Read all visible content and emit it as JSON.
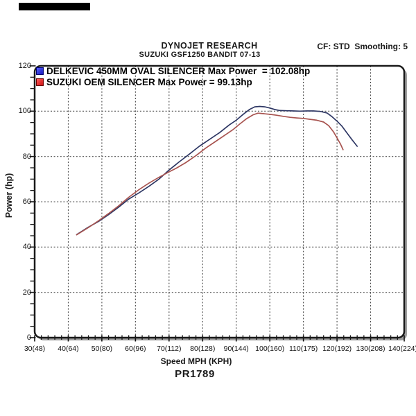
{
  "header": {
    "title": "DYNOJET RESEARCH",
    "subtitle": "SUZUKI GSF1250 BANDIT 07-13",
    "cf_smoothing": "CF: STD  Smoothing: 5"
  },
  "footer": {
    "xlabel": "Speed MPH (KPH)",
    "run_id": "PR1789"
  },
  "legend": [
    {
      "label": "DELKEVIC 450MM OVAL SILENCER Max Power  = 102.08hp",
      "swatch_fill_light": "#5560ff",
      "swatch_fill_dark": "#1717bb",
      "swatch_border": "#000070"
    },
    {
      "label": "SUZUKI OEM SILENCER Max Power = 99.13hp",
      "swatch_fill_light": "#ff5a5a",
      "swatch_fill_dark": "#cc1313",
      "swatch_border": "#6a0000"
    }
  ],
  "colors": {
    "delkevic_curve": "#2e3764",
    "oem_curve": "#a85450",
    "gridline": "#4a4a4a",
    "frame": "#1a1a1a",
    "frame_shadow": "#9e9e9e",
    "tick": "#111111"
  },
  "chart_data": {
    "type": "line",
    "title": "DYNOJET RESEARCH - SUZUKI GSF1250 BANDIT 07-13",
    "xlabel": "Speed MPH (KPH)",
    "ylabel": "Power (hp)",
    "xlim": [
      30,
      140
    ],
    "ylim": [
      0,
      120
    ],
    "grid": "dashed-major",
    "legend_position": "top-left-inside",
    "x_minor_step": 2,
    "y_minor_step": 5,
    "y_ticks": [
      0,
      20,
      40,
      60,
      80,
      100,
      120
    ],
    "x_ticks": [
      {
        "value": 30,
        "label": "30(48)"
      },
      {
        "value": 40,
        "label": "40(64)"
      },
      {
        "value": 50,
        "label": "50(80)"
      },
      {
        "value": 60,
        "label": "60(96)"
      },
      {
        "value": 70,
        "label": "70(112)"
      },
      {
        "value": 80,
        "label": "80(128)"
      },
      {
        "value": 90,
        "label": "90(144)"
      },
      {
        "value": 100,
        "label": "100(160)"
      },
      {
        "value": 110,
        "label": "110(175)"
      },
      {
        "value": 120,
        "label": "120(192)"
      },
      {
        "value": 130,
        "label": "130(208)"
      },
      {
        "value": 140,
        "label": "140(224)"
      }
    ],
    "series": [
      {
        "name": "DELKEVIC 450MM OVAL SILENCER",
        "max_power_hp": 102.08,
        "color": "#2e3764",
        "points": [
          [
            42.5,
            45.5
          ],
          [
            46,
            48.8
          ],
          [
            49,
            51.3
          ],
          [
            52,
            54.3
          ],
          [
            55,
            57.6
          ],
          [
            58,
            61.2
          ],
          [
            61,
            63.9
          ],
          [
            64,
            66.8
          ],
          [
            67,
            70.0
          ],
          [
            70,
            74.0
          ],
          [
            73,
            77.6
          ],
          [
            76,
            81.0
          ],
          [
            79,
            84.5
          ],
          [
            82,
            87.5
          ],
          [
            85,
            90.5
          ],
          [
            88,
            94.0
          ],
          [
            90,
            96.0
          ],
          [
            92,
            98.5
          ],
          [
            94,
            100.8
          ],
          [
            95.5,
            101.9
          ],
          [
            97,
            102.08
          ],
          [
            98.5,
            101.9
          ],
          [
            100,
            101.4
          ],
          [
            101.5,
            100.7
          ],
          [
            103,
            100.3
          ],
          [
            105,
            100.2
          ],
          [
            107,
            100.1
          ],
          [
            109,
            100.0
          ],
          [
            111,
            100.1
          ],
          [
            113,
            100.1
          ],
          [
            115,
            99.9
          ],
          [
            117,
            99.2
          ],
          [
            118.5,
            97.6
          ],
          [
            120,
            95.6
          ],
          [
            121.5,
            93.3
          ],
          [
            123,
            90.3
          ],
          [
            124.5,
            87.3
          ],
          [
            126,
            84.5
          ]
        ]
      },
      {
        "name": "SUZUKI OEM SILENCER",
        "max_power_hp": 99.13,
        "color": "#a85450",
        "points": [
          [
            42.5,
            45.4
          ],
          [
            46,
            48.6
          ],
          [
            49,
            51.6
          ],
          [
            52,
            54.8
          ],
          [
            55,
            58.2
          ],
          [
            58,
            62.0
          ],
          [
            61,
            65.3
          ],
          [
            64,
            68.2
          ],
          [
            67,
            70.8
          ],
          [
            70,
            73.2
          ],
          [
            72,
            74.7
          ],
          [
            75,
            77.3
          ],
          [
            78,
            80.4
          ],
          [
            81,
            83.8
          ],
          [
            84,
            86.8
          ],
          [
            87,
            89.8
          ],
          [
            89,
            91.8
          ],
          [
            91,
            94.3
          ],
          [
            93,
            96.6
          ],
          [
            95,
            98.4
          ],
          [
            96.5,
            99.13
          ],
          [
            98,
            98.9
          ],
          [
            100,
            98.6
          ],
          [
            102,
            98.2
          ],
          [
            104,
            97.7
          ],
          [
            106,
            97.3
          ],
          [
            108,
            97.0
          ],
          [
            110,
            96.8
          ],
          [
            112,
            96.4
          ],
          [
            114,
            96.0
          ],
          [
            116,
            95.2
          ],
          [
            117.5,
            93.6
          ],
          [
            119,
            90.8
          ],
          [
            120,
            88.2
          ],
          [
            121,
            85.6
          ],
          [
            121.8,
            83.0
          ]
        ]
      }
    ]
  }
}
